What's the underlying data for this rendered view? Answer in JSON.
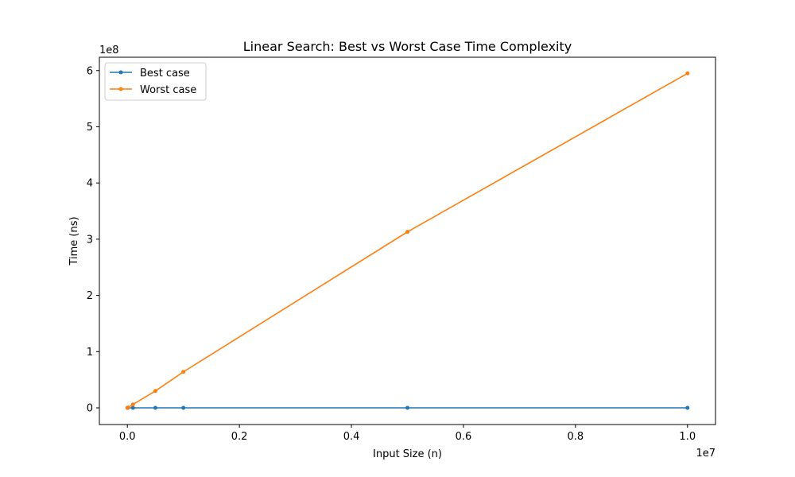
{
  "chart_data": {
    "type": "line",
    "title": "Linear Search: Best vs Worst Case Time Complexity",
    "xlabel": "Input Size (n)",
    "ylabel": "Time (ns)",
    "x_offset_text": "1e7",
    "y_offset_text": "1e8",
    "xlim": [
      -500000,
      10500000
    ],
    "ylim": [
      -29700000,
      623700000
    ],
    "x_ticks": [
      0,
      2000000,
      4000000,
      6000000,
      8000000,
      10000000
    ],
    "x_tick_labels": [
      "0.0",
      "0.2",
      "0.4",
      "0.6",
      "0.8",
      "1.0"
    ],
    "y_ticks": [
      0,
      100000000,
      200000000,
      300000000,
      400000000,
      500000000,
      600000000
    ],
    "y_tick_labels": [
      "0",
      "1",
      "2",
      "3",
      "4",
      "5",
      "6"
    ],
    "grid": false,
    "legend_position": "upper-left",
    "x": [
      1000,
      10000,
      100000,
      500000,
      1000000,
      5000000,
      10000000
    ],
    "series": [
      {
        "name": "Best case",
        "color": "#1f77b4",
        "values": [
          100,
          100,
          100,
          100,
          100,
          100,
          100
        ]
      },
      {
        "name": "Worst case",
        "color": "#ff7f0e",
        "values": [
          60000,
          600000,
          6000000,
          30000000,
          64000000,
          313000000,
          595000000
        ]
      }
    ]
  }
}
